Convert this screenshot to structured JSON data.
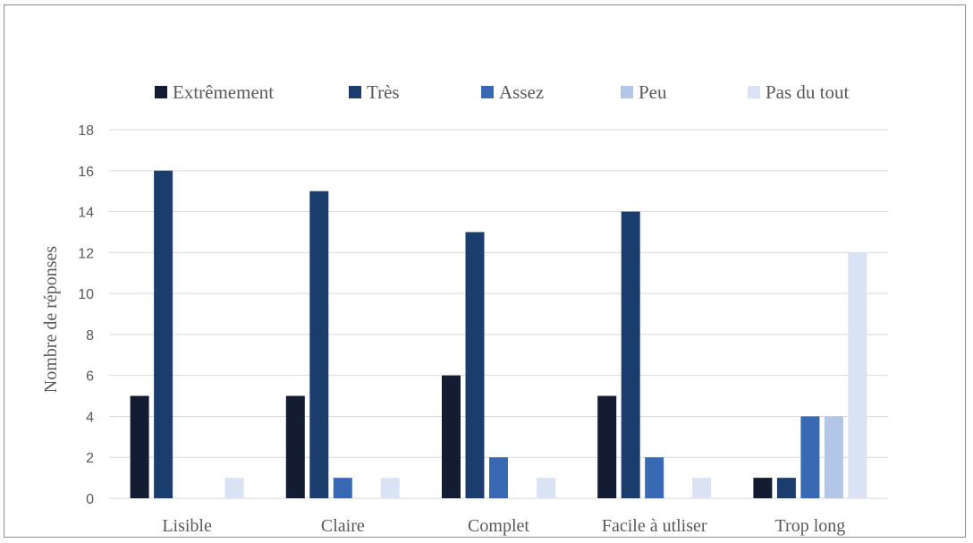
{
  "chart_data": {
    "type": "bar",
    "title": "",
    "xlabel": "",
    "ylabel": "Nombre de réponses",
    "ylim": [
      0,
      18
    ],
    "yticks": [
      0,
      2,
      4,
      6,
      8,
      10,
      12,
      14,
      16,
      18
    ],
    "grid": true,
    "legend_position": "top",
    "categories": [
      "Lisible",
      "Claire",
      "Complet",
      "Facile à utliser",
      "Trop long"
    ],
    "series": [
      {
        "name": "Extrêmement",
        "color": "#131c30",
        "values": [
          5,
          5,
          6,
          5,
          1
        ]
      },
      {
        "name": "Très",
        "color": "#1b3d6e",
        "values": [
          16,
          15,
          13,
          14,
          1
        ]
      },
      {
        "name": "Assez",
        "color": "#3a69b4",
        "values": [
          0,
          1,
          2,
          2,
          4
        ]
      },
      {
        "name": "Peu",
        "color": "#b4c6e7",
        "values": [
          0,
          0,
          0,
          0,
          4
        ]
      },
      {
        "name": "Pas du tout",
        "color": "#dae3f3",
        "values": [
          1,
          1,
          1,
          1,
          12
        ]
      }
    ]
  }
}
